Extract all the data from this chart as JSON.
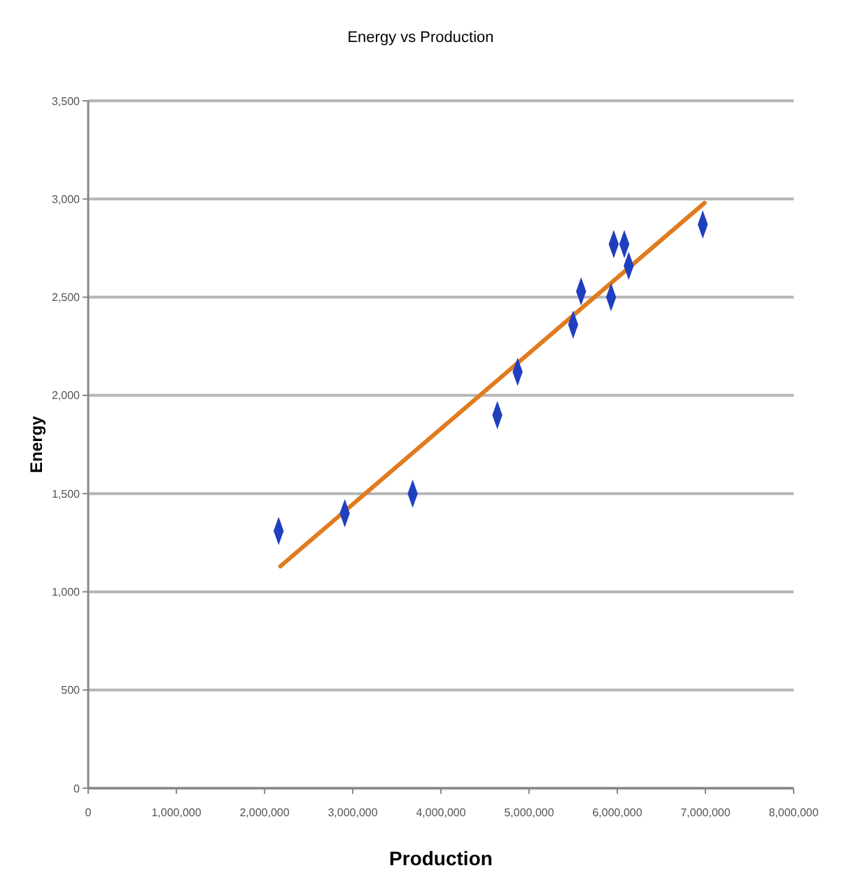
{
  "chart_data": {
    "type": "scatter",
    "title": "Energy vs Production",
    "xlabel": "Production",
    "ylabel": "Energy",
    "xlim": [
      0,
      8000000
    ],
    "xticks": [
      0,
      {
        "value": 1000000,
        "label": "1,000,000"
      },
      {
        "value": 2000000,
        "label": "2,000,000"
      },
      {
        "value": 3000000,
        "label": "3,000,000"
      },
      {
        "value": 4000000,
        "label": "4,000,000"
      },
      {
        "value": 5000000,
        "label": "5,000,000"
      },
      {
        "value": 6000000,
        "label": "6,000,000"
      },
      {
        "value": 7000000,
        "label": "7,000,000"
      },
      {
        "value": 8000000,
        "label": "8,000,000"
      }
    ],
    "ylim": [
      0,
      3500
    ],
    "yticks": [
      0,
      500,
      {
        "value": 1000,
        "label": "1,000"
      },
      {
        "value": 1500,
        "label": "1,500"
      },
      {
        "value": 2000,
        "label": "2,000"
      },
      {
        "value": 2500,
        "label": "2,500"
      },
      {
        "value": 3000,
        "label": "3,000"
      },
      {
        "value": 3500,
        "label": "3,500"
      }
    ],
    "grid": "y",
    "series": [
      {
        "color": "#1f3fbf",
        "marker": "diamond",
        "x": [
          2160000,
          2910000,
          3680000,
          4640000,
          4870000,
          5500000,
          5590000,
          5930000,
          5960000,
          6080000,
          6130000,
          6970000
        ],
        "values": [
          1310,
          1400,
          1500,
          1900,
          2120,
          2360,
          2530,
          2500,
          2770,
          2770,
          2660,
          2870
        ]
      },
      {
        "type": "line",
        "color": "#e07b20",
        "marker": "none",
        "x": [
          2180000,
          6990000
        ],
        "values": [
          1130,
          2980
        ]
      }
    ]
  }
}
